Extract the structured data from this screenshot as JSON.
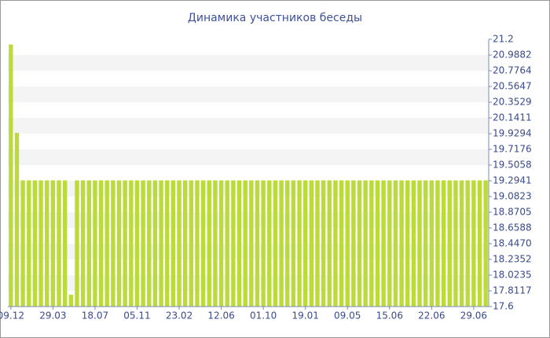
{
  "chart_data": {
    "type": "bar",
    "title": "Динамика участников беседы",
    "categories": [
      "09.12",
      null,
      null,
      null,
      null,
      null,
      null,
      "29.03",
      null,
      null,
      null,
      null,
      null,
      null,
      "18.07",
      null,
      null,
      null,
      null,
      null,
      null,
      "05.11",
      null,
      null,
      null,
      null,
      null,
      null,
      "23.02",
      null,
      null,
      null,
      null,
      null,
      null,
      "12.06",
      null,
      null,
      null,
      null,
      null,
      null,
      "01.10",
      null,
      null,
      null,
      null,
      null,
      null,
      "19.01",
      null,
      null,
      null,
      null,
      null,
      null,
      "09.05",
      null,
      null,
      null,
      null,
      null,
      null,
      "15.06",
      null,
      null,
      null,
      null,
      null,
      null,
      "22.06",
      null,
      null,
      null,
      null,
      null,
      null,
      "29.06",
      null,
      null
    ],
    "values": [
      21.13,
      19.94,
      19.3,
      19.3,
      19.3,
      19.3,
      19.3,
      19.3,
      19.3,
      19.3,
      17.76,
      19.3,
      19.3,
      19.3,
      19.3,
      19.3,
      19.3,
      19.3,
      19.3,
      19.3,
      19.3,
      19.3,
      19.3,
      19.3,
      19.3,
      19.3,
      19.3,
      19.3,
      19.3,
      19.3,
      19.3,
      19.3,
      19.3,
      19.3,
      19.3,
      19.3,
      19.3,
      19.3,
      19.3,
      19.3,
      19.3,
      19.3,
      19.3,
      19.3,
      19.3,
      19.3,
      19.3,
      19.3,
      19.3,
      19.3,
      19.3,
      19.3,
      19.3,
      19.3,
      19.3,
      19.3,
      19.3,
      19.3,
      19.3,
      19.3,
      19.3,
      19.3,
      19.3,
      19.3,
      19.3,
      19.3,
      19.3,
      19.3,
      19.3,
      19.3,
      19.3,
      19.3,
      19.3,
      19.3,
      19.3,
      19.3,
      19.3,
      19.3,
      19.3,
      19.3
    ],
    "color": "#bcdb3a",
    "ylim": [
      17.6,
      21.2
    ],
    "yticks": [
      17.6,
      17.8117,
      18.0235,
      18.2352,
      {
        "value": 18.447,
        "label": "18.4470"
      },
      18.6588,
      18.8705,
      19.0823,
      19.2941,
      19.5058,
      19.7176,
      19.9294,
      20.1411,
      20.3529,
      20.5647,
      20.7764,
      20.9882,
      21.2
    ],
    "grid": true
  }
}
